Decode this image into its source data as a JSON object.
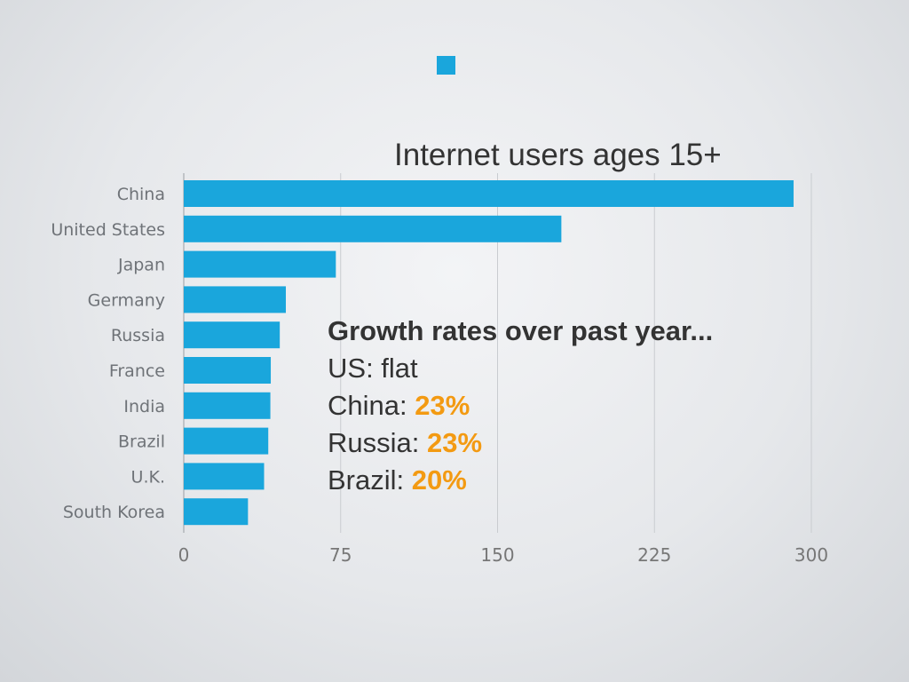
{
  "chart_data": {
    "type": "bar",
    "orientation": "horizontal",
    "title": "Internet users ages 15+",
    "categories": [
      "China",
      "United States",
      "Japan",
      "Germany",
      "Russia",
      "France",
      "India",
      "Brazil",
      "U.K.",
      "South Korea"
    ],
    "values": [
      291.5,
      180.5,
      72.7,
      48.8,
      45.9,
      41.6,
      41.4,
      40.4,
      38.4,
      30.7
    ],
    "xlim": [
      0,
      300
    ],
    "xticks": [
      0,
      75,
      150,
      225,
      300
    ],
    "xtick_labels": [
      "0",
      "75",
      "150",
      "225",
      "300"
    ],
    "grid": "vertical",
    "bar_color": "#1aa6dc"
  },
  "annotation": {
    "heading": "Growth rates over past year...",
    "lines": [
      {
        "label": "US: flat",
        "value": ""
      },
      {
        "label": "China: ",
        "value": "23%"
      },
      {
        "label": "Russia: ",
        "value": "23%"
      },
      {
        "label": "Brazil: ",
        "value": "20%"
      }
    ],
    "highlight_color": "#f39a12"
  }
}
